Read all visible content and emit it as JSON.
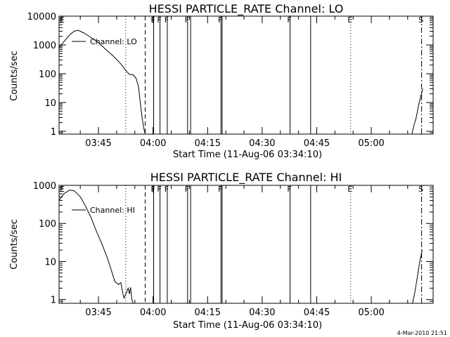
{
  "footer_timestamp": "4-Mar-2010 21:51",
  "chart_data": [
    {
      "type": "line",
      "title": "HESSI PARTICLE_RATE Channel: LO",
      "xlabel": "Start Time (11-Aug-06 03:34:10)",
      "ylabel": "Counts/sec",
      "y_scale": "log",
      "xlim": [
        "03:34:10",
        "05:17:00"
      ],
      "ylim": [
        0.8,
        10000
      ],
      "xticks": [
        {
          "label": "03:45",
          "t": "03:45"
        },
        {
          "label": "04:00",
          "t": "04:00"
        },
        {
          "label": "04:15",
          "t": "04:15"
        },
        {
          "label": "04:30",
          "t": "04:30"
        },
        {
          "label": "04:45",
          "t": "04:45"
        },
        {
          "label": "05:00",
          "t": "05:00"
        }
      ],
      "yticks": [
        {
          "label": "1",
          "v": 1
        },
        {
          "label": "10",
          "v": 10
        },
        {
          "label": "100",
          "v": 100
        },
        {
          "label": "1000",
          "v": 1000
        },
        {
          "label": "10000",
          "v": 10000
        }
      ],
      "legend": {
        "label": "Channel: LO",
        "placement": "top-left"
      },
      "markers": [
        {
          "t": "03:34:10",
          "style": "none",
          "label": "E"
        },
        {
          "t": "03:52:30",
          "style": "dotted",
          "label": ""
        },
        {
          "t": "03:57:50",
          "style": "dashed",
          "label": ""
        },
        {
          "t": "04:00:10",
          "style": "solid",
          "label": "F"
        },
        {
          "t": "04:01:55",
          "style": "solid",
          "label": "F"
        },
        {
          "t": "04:03:55",
          "style": "solid",
          "label": "F"
        },
        {
          "t": "04:09:30",
          "style": "solid",
          "label": "F"
        },
        {
          "t": "04:10:20",
          "style": "solid",
          "label": ""
        },
        {
          "t": "04:18:40",
          "style": "solid",
          "label": "F"
        },
        {
          "t": "04:19:00",
          "style": "solid",
          "label": ""
        },
        {
          "t": "04:37:40",
          "style": "solid",
          "label": "F"
        },
        {
          "t": "04:43:20",
          "style": "solid",
          "label": ""
        },
        {
          "t": "04:54:20",
          "style": "dotted",
          "label": "E"
        },
        {
          "t": "05:13:50",
          "style": "dashdot",
          "label": "S"
        }
      ],
      "series": [
        {
          "name": "Channel: LO",
          "points": [
            [
              "03:34:10",
              800
            ],
            [
              "03:35:30",
              1300
            ],
            [
              "03:37:00",
              2200
            ],
            [
              "03:38:20",
              3000
            ],
            [
              "03:39:30",
              3200
            ],
            [
              "03:41:00",
              2600
            ],
            [
              "03:43:00",
              1800
            ],
            [
              "03:45:00",
              1200
            ],
            [
              "03:47:00",
              700
            ],
            [
              "03:49:00",
              420
            ],
            [
              "03:51:00",
              230
            ],
            [
              "03:52:30",
              130
            ],
            [
              "03:53:30",
              95
            ],
            [
              "03:54:30",
              92
            ],
            [
              "03:55:20",
              70
            ],
            [
              "03:56:00",
              35
            ],
            [
              "03:56:30",
              10
            ],
            [
              "03:57:00",
              3
            ],
            [
              "03:57:30",
              1.2
            ],
            [
              "03:57:50",
              0.8
            ]
          ]
        },
        {
          "name": "",
          "points": [
            [
              "05:11:10",
              0.8
            ],
            [
              "05:11:40",
              1.5
            ],
            [
              "05:12:20",
              3
            ],
            [
              "05:13:00",
              8
            ],
            [
              "05:13:40",
              18
            ],
            [
              "05:14:10",
              30
            ]
          ]
        }
      ]
    },
    {
      "type": "line",
      "title": "HESSI PARTICLE_RATE Channel: HI",
      "xlabel": "Start Time (11-Aug-06 03:34:10)",
      "ylabel": "Counts/sec",
      "y_scale": "log",
      "xlim": [
        "03:34:10",
        "05:17:00"
      ],
      "ylim": [
        0.8,
        1000
      ],
      "xticks": [
        {
          "label": "03:45",
          "t": "03:45"
        },
        {
          "label": "04:00",
          "t": "04:00"
        },
        {
          "label": "04:15",
          "t": "04:15"
        },
        {
          "label": "04:30",
          "t": "04:30"
        },
        {
          "label": "04:45",
          "t": "04:45"
        },
        {
          "label": "05:00",
          "t": "05:00"
        }
      ],
      "yticks": [
        {
          "label": "1",
          "v": 1
        },
        {
          "label": "10",
          "v": 10
        },
        {
          "label": "100",
          "v": 100
        },
        {
          "label": "1000",
          "v": 1000
        }
      ],
      "legend": {
        "label": "Channel: HI",
        "placement": "top-left"
      },
      "markers": [
        {
          "t": "03:34:10",
          "style": "none",
          "label": "E"
        },
        {
          "t": "03:52:30",
          "style": "dotted",
          "label": ""
        },
        {
          "t": "03:57:50",
          "style": "dashed",
          "label": ""
        },
        {
          "t": "04:00:10",
          "style": "solid",
          "label": "F"
        },
        {
          "t": "04:01:55",
          "style": "solid",
          "label": "F"
        },
        {
          "t": "04:03:55",
          "style": "solid",
          "label": "F"
        },
        {
          "t": "04:09:30",
          "style": "solid",
          "label": "F"
        },
        {
          "t": "04:10:20",
          "style": "solid",
          "label": ""
        },
        {
          "t": "04:18:40",
          "style": "solid",
          "label": "F"
        },
        {
          "t": "04:19:00",
          "style": "solid",
          "label": ""
        },
        {
          "t": "04:37:40",
          "style": "solid",
          "label": "F"
        },
        {
          "t": "04:43:20",
          "style": "solid",
          "label": ""
        },
        {
          "t": "04:54:20",
          "style": "dotted",
          "label": "E"
        },
        {
          "t": "05:13:50",
          "style": "dashdot",
          "label": "S"
        }
      ],
      "series": [
        {
          "name": "Channel: HI",
          "points": [
            [
              "03:34:10",
              400
            ],
            [
              "03:35:30",
              600
            ],
            [
              "03:37:00",
              750
            ],
            [
              "03:38:20",
              720
            ],
            [
              "03:40:00",
              500
            ],
            [
              "03:41:30",
              280
            ],
            [
              "03:43:00",
              140
            ],
            [
              "03:44:30",
              60
            ],
            [
              "03:46:00",
              28
            ],
            [
              "03:47:30",
              12
            ],
            [
              "03:48:30",
              6
            ],
            [
              "03:49:30",
              3
            ],
            [
              "03:50:30",
              2.5
            ],
            [
              "03:51:10",
              2.8
            ],
            [
              "03:51:40",
              1.5
            ],
            [
              "03:52:00",
              1.1
            ],
            [
              "03:52:40",
              1.5
            ],
            [
              "03:53:10",
              2.0
            ],
            [
              "03:53:30",
              1.4
            ],
            [
              "03:53:50",
              2.1
            ],
            [
              "03:54:10",
              1.0
            ],
            [
              "03:54:30",
              0.8
            ]
          ]
        },
        {
          "name": "",
          "points": [
            [
              "05:11:20",
              0.8
            ],
            [
              "05:12:00",
              1.6
            ],
            [
              "05:12:40",
              4
            ],
            [
              "05:13:20",
              10
            ],
            [
              "05:14:00",
              20
            ]
          ]
        }
      ]
    }
  ]
}
